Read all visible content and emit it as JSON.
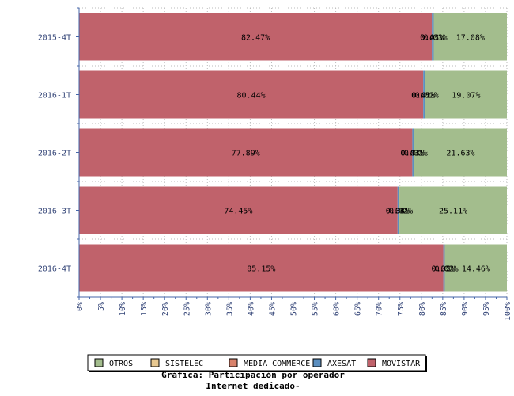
{
  "chart_data": {
    "type": "bar",
    "orientation": "horizontal",
    "stacked": "percent",
    "title_line1": "Gráfica: Participación por operador",
    "title_line2": "Internet dedicado-",
    "categories": [
      "2015-4T",
      "2016-1T",
      "2016-2T",
      "2016-3T",
      "2016-4T"
    ],
    "x_ticks": [
      "0%",
      "5%",
      "10%",
      "15%",
      "20%",
      "25%",
      "30%",
      "35%",
      "40%",
      "45%",
      "50%",
      "55%",
      "60%",
      "65%",
      "70%",
      "75%",
      "80%",
      "85%",
      "90%",
      "95%",
      "100%"
    ],
    "xlim": [
      0,
      100
    ],
    "legend_position": "bottom",
    "legend_order": [
      "OTROS",
      "SISTELEC",
      "MEDIA COMMERCE",
      "AXESAT",
      "MOVISTAR"
    ],
    "series": [
      {
        "name": "MOVISTAR",
        "color": "#c0626b",
        "values": [
          82.47,
          80.44,
          77.89,
          74.45,
          85.15
        ],
        "labels": [
          "82.47%",
          "80.44%",
          "77.89%",
          "74.45%",
          "85.15%"
        ]
      },
      {
        "name": "AXESAT",
        "color": "#5b8fc0",
        "values": [
          0.43,
          0.45,
          0.43,
          0.38,
          0.35
        ],
        "labels": [
          "0.43%",
          "0.45%",
          "0.43%",
          "0.38%",
          "0.35%"
        ]
      },
      {
        "name": "MEDIA COMMERCE",
        "color": "#d9826b",
        "values": [
          0.01,
          0.02,
          0.03,
          0.04,
          0.02
        ],
        "labels": [
          "0.01%",
          "0.02%",
          "0.03%",
          "0.04%",
          "0.02%"
        ]
      },
      {
        "name": "SISTELEC",
        "color": "#e8c890",
        "values": [
          0.01,
          0.02,
          0.02,
          0.02,
          0.02
        ],
        "labels": [
          "0.01%",
          "0.02%",
          "0.02%",
          "0.02%",
          "0.02%"
        ]
      },
      {
        "name": "OTROS",
        "color": "#a3bd8d",
        "values": [
          17.08,
          19.07,
          21.63,
          25.11,
          14.46
        ],
        "labels": [
          "17.08%",
          "19.07%",
          "21.63%",
          "25.11%",
          "14.46%"
        ]
      }
    ]
  }
}
